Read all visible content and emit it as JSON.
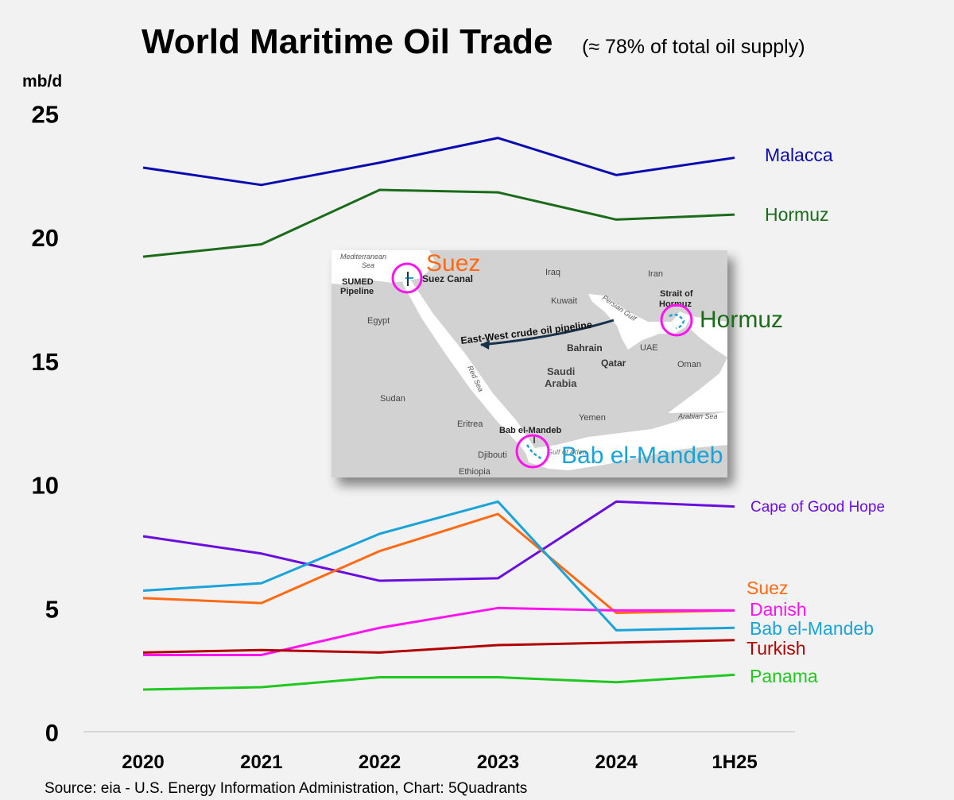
{
  "chart_data": {
    "type": "line",
    "title": "World Maritime Oil Trade",
    "subtitle": "(≈ 78% of total oil supply)",
    "ylabel": "mb/d",
    "ylim": [
      0,
      25
    ],
    "yticks": [
      0,
      5,
      10,
      15,
      20,
      25
    ],
    "categories": [
      "2020",
      "2021",
      "2022",
      "2023",
      "2024",
      "1H25"
    ],
    "grid": false,
    "series": [
      {
        "name": "Malacca",
        "color": "#0a0ab0",
        "values": [
          22.8,
          22.1,
          23.0,
          24.0,
          22.5,
          23.2
        ]
      },
      {
        "name": "Hormuz",
        "color": "#1a6b1a",
        "values": [
          19.2,
          19.7,
          21.9,
          21.8,
          20.7,
          20.9
        ]
      },
      {
        "name": "Cape of Good Hope",
        "color": "#6a0ee0",
        "values": [
          7.9,
          7.2,
          6.1,
          6.2,
          9.3,
          9.1
        ]
      },
      {
        "name": "Suez",
        "color": "#ff6a13",
        "values": [
          5.4,
          5.2,
          7.3,
          8.8,
          4.8,
          4.9
        ]
      },
      {
        "name": "Danish",
        "color": "#ff14f0",
        "values": [
          3.1,
          3.1,
          4.2,
          5.0,
          4.9,
          4.9
        ]
      },
      {
        "name": "Bab el-Mandeb",
        "color": "#1aa3d8",
        "values": [
          5.7,
          6.0,
          8.0,
          9.3,
          4.1,
          4.2
        ]
      },
      {
        "name": "Turkish",
        "color": "#b20000",
        "values": [
          3.2,
          3.3,
          3.2,
          3.5,
          3.6,
          3.7
        ]
      },
      {
        "name": "Panama",
        "color": "#1ec81e",
        "values": [
          1.7,
          1.8,
          2.2,
          2.2,
          2.0,
          2.3
        ]
      }
    ]
  },
  "inset_map": {
    "labels": {
      "mediterranean": "Mediterranean",
      "sea": "Sea",
      "sumed": "SUMED",
      "pipeline": "Pipeline",
      "suez_canal": "Suez Canal",
      "suez": "Suez",
      "iraq": "Iraq",
      "iran": "Iran",
      "kuwait": "Kuwait",
      "egypt": "Egypt",
      "persian_gulf": "Persian Gulf",
      "strait_of": "Strait of",
      "hormuz_small": "Hormuz",
      "hormuz_big": "Hormuz",
      "east_west": "East-West crude oil pipeline",
      "bahrain": "Bahrain",
      "uae": "UAE",
      "qatar": "Qatar",
      "oman": "Oman",
      "saudi": "Saudi",
      "arabia": "Arabia",
      "red_sea": "Red Sea",
      "sudan": "Sudan",
      "yemen": "Yemen",
      "arabian_sea": "Arabian Sea",
      "eritrea": "Eritrea",
      "bab_small": "Bab el-Mandeb",
      "bab_big": "Bab el-Mandeb",
      "djibouti": "Djibouti",
      "gulf_of_aden": "Gulf of Aden",
      "ethiopia": "Ethiopia"
    }
  },
  "source": "Source: eia - U.S. Energy Information Administration, Chart: 5Quadrants"
}
